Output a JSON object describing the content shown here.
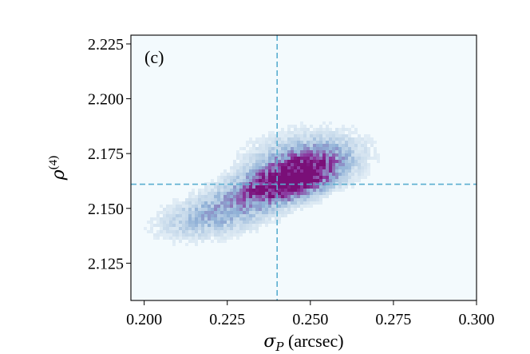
{
  "chart_data": {
    "type": "heatmap",
    "panel_label": "(c)",
    "xlabel": {
      "symbol": "σ",
      "subscript": "P",
      "unit": "(arcsec)"
    },
    "ylabel": {
      "symbol": "ρ",
      "superscript": "(4)"
    },
    "xlim": [
      0.196,
      0.3
    ],
    "ylim": [
      2.108,
      2.229
    ],
    "xticks": [
      0.2,
      0.225,
      0.25,
      0.275,
      0.3
    ],
    "xtick_labels": [
      "0.200",
      "0.225",
      "0.250",
      "0.275",
      "0.300"
    ],
    "yticks": [
      2.125,
      2.15,
      2.175,
      2.2,
      2.225
    ],
    "ytick_labels": [
      "2.125",
      "2.150",
      "2.175",
      "2.200",
      "2.225"
    ],
    "reference_lines": {
      "x": 0.24,
      "y": 2.161
    },
    "colormap": [
      "#f3fafd",
      "#c6d9ea",
      "#8fb0d6",
      "#8c6fb6",
      "#8b3aa0",
      "#7a0f78"
    ],
    "background_color": "#f3fafd",
    "reference_line_color": "#5aaed0",
    "density_clusters": [
      {
        "center": [
          0.2465,
          2.1655
        ],
        "sd": [
          0.0075,
          0.0062
        ],
        "corr": 0.45,
        "weight": 1.0
      },
      {
        "center": [
          0.2385,
          2.16
        ],
        "sd": [
          0.009,
          0.006
        ],
        "corr": 0.5,
        "weight": 0.65
      },
      {
        "center": [
          0.222,
          2.147
        ],
        "sd": [
          0.011,
          0.007
        ],
        "corr": 0.4,
        "weight": 0.3
      },
      {
        "center": [
          0.248,
          2.172
        ],
        "sd": [
          0.011,
          0.0085
        ],
        "corr": 0.2,
        "weight": 0.3
      }
    ]
  }
}
